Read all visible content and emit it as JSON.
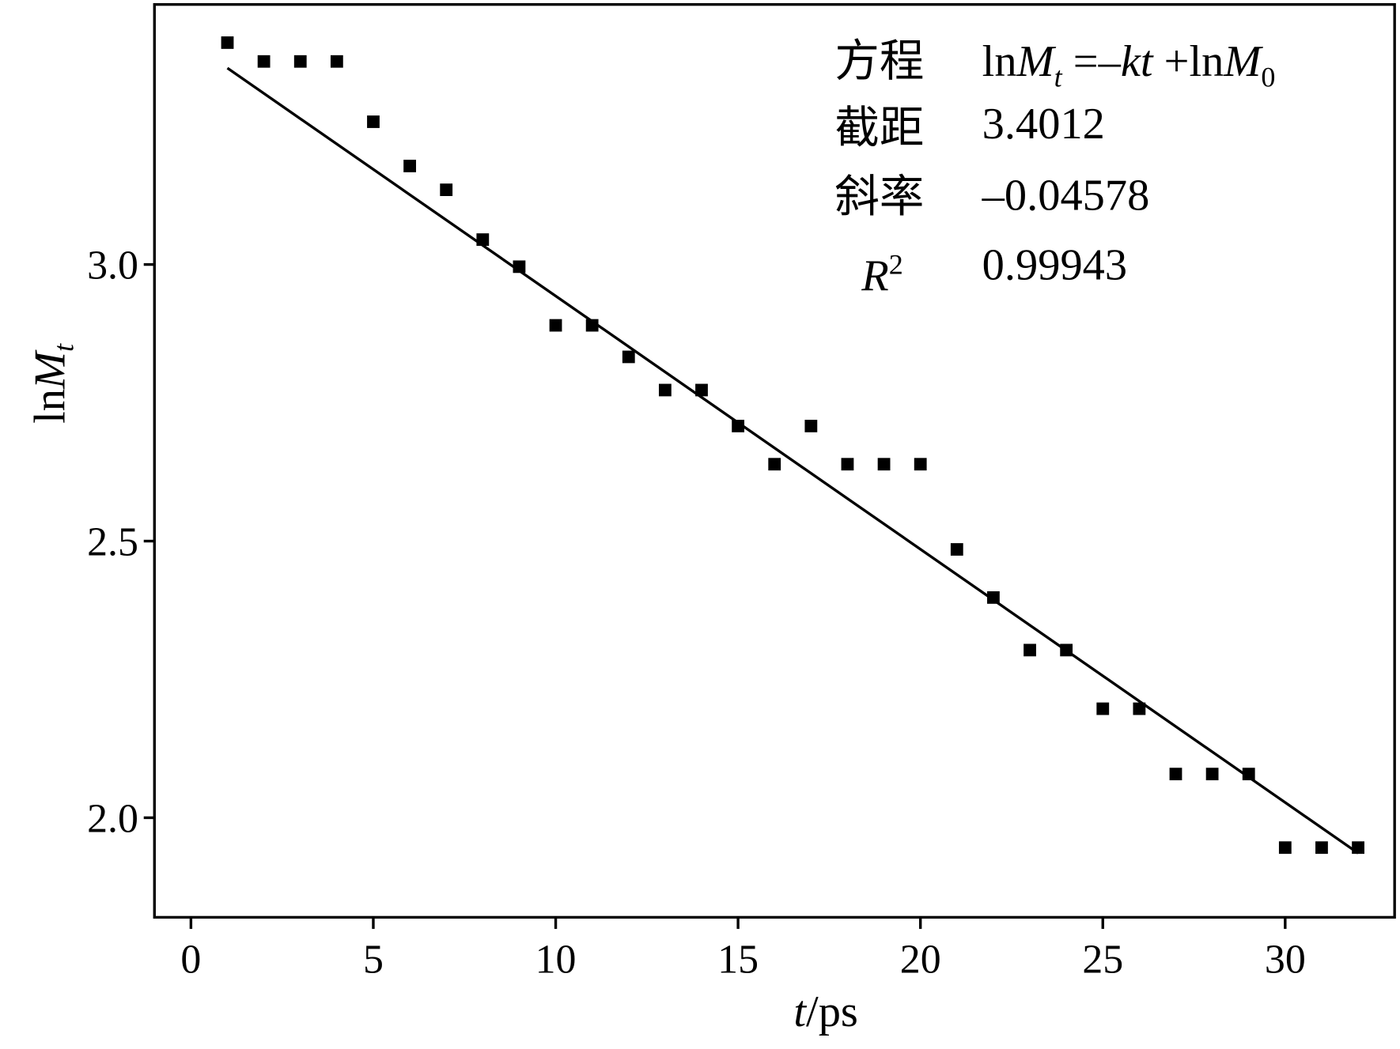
{
  "chart_data": {
    "type": "scatter",
    "x_label": [
      "t",
      "/ps"
    ],
    "y_label": [
      "ln",
      "M",
      "t"
    ],
    "annotations": {
      "rows": [
        {
          "label": "方程",
          "value": [
            "ln",
            "M",
            "t",
            " =–",
            "kt",
            " +ln",
            "M",
            "0"
          ]
        },
        {
          "label": "截距",
          "value": "3.4012"
        },
        {
          "label": "斜率",
          "value": "–0.04578"
        },
        {
          "label": [
            "R",
            "2"
          ],
          "value": "0.99943"
        }
      ]
    },
    "xlim": [
      -1,
      33
    ],
    "ylim": [
      1.82,
      3.47
    ],
    "xticks": [
      0,
      5,
      10,
      15,
      20,
      25,
      30
    ],
    "yticks": [
      {
        "value": 2,
        "label": "2.0"
      },
      {
        "value": 2.5,
        "label": "2.5"
      },
      {
        "value": 3,
        "label": "3.0"
      }
    ],
    "series": [
      {
        "color": "#000000",
        "x": [
          1,
          2,
          3,
          4,
          5,
          6,
          7,
          8,
          9,
          10,
          11,
          12,
          13,
          14,
          15,
          16,
          17,
          18,
          19,
          20,
          21,
          22,
          23,
          24,
          25,
          26,
          27,
          28,
          29,
          30,
          31,
          32
        ],
        "values": [
          3.401,
          3.367,
          3.367,
          3.367,
          3.258,
          3.178,
          3.135,
          3.045,
          2.996,
          2.89,
          2.89,
          2.833,
          2.773,
          2.773,
          2.708,
          2.639,
          2.708,
          2.639,
          2.639,
          2.639,
          2.485,
          2.398,
          2.303,
          2.303,
          2.197,
          2.197,
          2.079,
          2.079,
          2.079,
          1.946,
          1.946,
          1.946
        ]
      },
      {
        "type": "line",
        "color": "#000000",
        "x": [
          1,
          32
        ],
        "values": [
          3.355,
          1.936
        ]
      }
    ]
  }
}
